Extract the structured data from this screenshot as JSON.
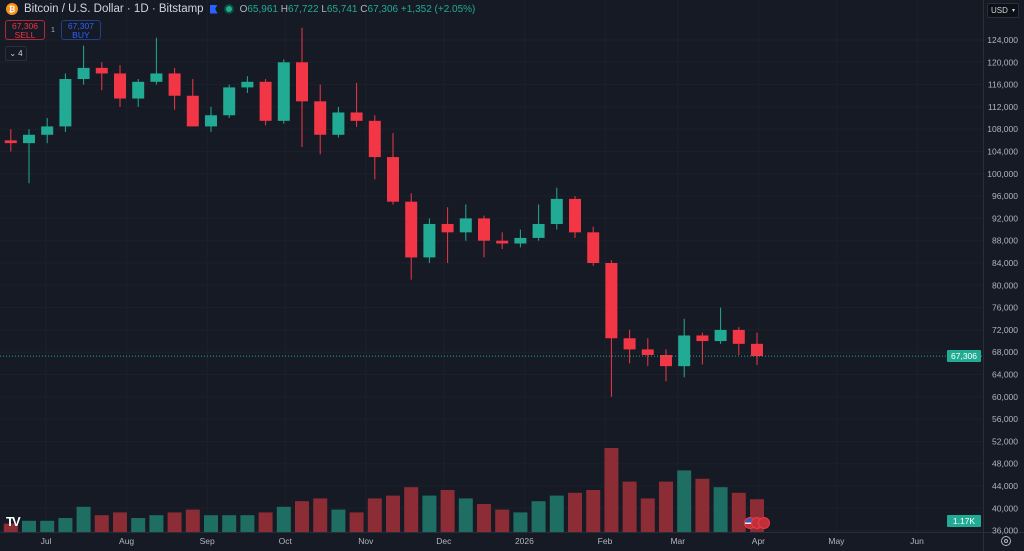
{
  "header": {
    "coin_icon": "bitcoin-icon",
    "coin_glyph": "₿",
    "title": "Bitcoin / U.S. Dollar · 1D · Bitstamp",
    "open_label": "O",
    "open": "65,961",
    "high_label": "H",
    "high": "67,722",
    "low_label": "L",
    "low": "65,741",
    "close_label": "C",
    "close": "67,306",
    "change": "+1,352 (+2.05%)"
  },
  "trade": {
    "sell_price": "67,306",
    "sell_label": "SELL",
    "spread": "1",
    "buy_price": "67,307",
    "buy_label": "BUY"
  },
  "indicators_toggle": {
    "count": "4",
    "icon": "chevron-down-icon"
  },
  "currency": {
    "value": "USD",
    "icon": "chevron-down-icon"
  },
  "last_price_label": "67,306",
  "volume_label": "1.17K",
  "logo": "TV",
  "colors": {
    "background": "#161a25",
    "up": "#22ab94",
    "down": "#f23645",
    "up_volume": "#1f6e64",
    "down_volume": "#8c2d35",
    "text": "#b2b5be"
  },
  "chart_data": {
    "type": "candlestick",
    "interval": "1D",
    "aggregation_shown": "weekly approximation",
    "title": "Bitcoin / U.S. Dollar · 1D · Bitstamp",
    "ylim": [
      36000,
      128000
    ],
    "y_ticks": [
      "124,000",
      "120,000",
      "116,000",
      "112,000",
      "108,000",
      "104,000",
      "100,000",
      "96,000",
      "92,000",
      "88,000",
      "84,000",
      "80,000",
      "76,000",
      "72,000",
      "68,000",
      "64,000",
      "60,000",
      "56,000",
      "52,000",
      "48,000",
      "44,000",
      "40,000",
      "36,000"
    ],
    "y_tick_values": [
      124000,
      120000,
      116000,
      112000,
      108000,
      104000,
      100000,
      96000,
      92000,
      88000,
      84000,
      80000,
      76000,
      72000,
      68000,
      64000,
      60000,
      56000,
      52000,
      48000,
      44000,
      40000,
      36000
    ],
    "x_ticks": [
      {
        "label": "Jul",
        "date": "2025-07-01"
      },
      {
        "label": "Aug",
        "date": "2025-08-01"
      },
      {
        "label": "Sep",
        "date": "2025-09-01"
      },
      {
        "label": "Oct",
        "date": "2025-10-01"
      },
      {
        "label": "Nov",
        "date": "2025-11-01"
      },
      {
        "label": "Dec",
        "date": "2025-12-01"
      },
      {
        "label": "2026",
        "date": "2026-01-01"
      },
      {
        "label": "Feb",
        "date": "2026-02-01"
      },
      {
        "label": "Mar",
        "date": "2026-03-01"
      },
      {
        "label": "Apr",
        "date": "2026-04-01"
      },
      {
        "label": "May",
        "date": "2026-05-01"
      },
      {
        "label": "Jun",
        "date": "2026-06-01"
      }
    ],
    "last_price": 67306,
    "volume_unit": "K",
    "candles": [
      {
        "date": "2025-06-14",
        "o": 106000,
        "h": 108000,
        "l": 104000,
        "c": 105500,
        "v": 0.3
      },
      {
        "date": "2025-06-21",
        "o": 105500,
        "h": 108000,
        "l": 98300,
        "c": 107000,
        "v": 0.4
      },
      {
        "date": "2025-06-28",
        "o": 107000,
        "h": 110000,
        "l": 105500,
        "c": 108500,
        "v": 0.4
      },
      {
        "date": "2025-07-05",
        "o": 108500,
        "h": 118000,
        "l": 107500,
        "c": 117000,
        "v": 0.5
      },
      {
        "date": "2025-07-12",
        "o": 117000,
        "h": 123000,
        "l": 116000,
        "c": 119000,
        "v": 0.9
      },
      {
        "date": "2025-07-19",
        "o": 119000,
        "h": 120000,
        "l": 115000,
        "c": 118000,
        "v": 0.6
      },
      {
        "date": "2025-07-26",
        "o": 118000,
        "h": 119500,
        "l": 112000,
        "c": 113500,
        "v": 0.7
      },
      {
        "date": "2025-08-02",
        "o": 113500,
        "h": 117000,
        "l": 112000,
        "c": 116500,
        "v": 0.5
      },
      {
        "date": "2025-08-09",
        "o": 116500,
        "h": 124400,
        "l": 116000,
        "c": 118000,
        "v": 0.6
      },
      {
        "date": "2025-08-16",
        "o": 118000,
        "h": 119000,
        "l": 111500,
        "c": 114000,
        "v": 0.7
      },
      {
        "date": "2025-08-23",
        "o": 114000,
        "h": 117000,
        "l": 108500,
        "c": 108500,
        "v": 0.8
      },
      {
        "date": "2025-08-30",
        "o": 108500,
        "h": 112000,
        "l": 107500,
        "c": 110500,
        "v": 0.6
      },
      {
        "date": "2025-09-06",
        "o": 110500,
        "h": 116000,
        "l": 110000,
        "c": 115500,
        "v": 0.6
      },
      {
        "date": "2025-09-13",
        "o": 115500,
        "h": 117500,
        "l": 114500,
        "c": 116500,
        "v": 0.6
      },
      {
        "date": "2025-09-20",
        "o": 116500,
        "h": 117000,
        "l": 108700,
        "c": 109500,
        "v": 0.7
      },
      {
        "date": "2025-09-27",
        "o": 109500,
        "h": 120500,
        "l": 109000,
        "c": 120000,
        "v": 0.9
      },
      {
        "date": "2025-10-04",
        "o": 120000,
        "h": 126200,
        "l": 104800,
        "c": 113000,
        "v": 1.1
      },
      {
        "date": "2025-10-11",
        "o": 113000,
        "h": 116000,
        "l": 103500,
        "c": 107000,
        "v": 1.2
      },
      {
        "date": "2025-10-18",
        "o": 107000,
        "h": 112000,
        "l": 106500,
        "c": 111000,
        "v": 0.8
      },
      {
        "date": "2025-10-25",
        "o": 111000,
        "h": 116300,
        "l": 108400,
        "c": 109500,
        "v": 0.7
      },
      {
        "date": "2025-11-01",
        "o": 109500,
        "h": 110500,
        "l": 99000,
        "c": 103000,
        "v": 1.2
      },
      {
        "date": "2025-11-08",
        "o": 103000,
        "h": 107300,
        "l": 94500,
        "c": 95000,
        "v": 1.3
      },
      {
        "date": "2025-11-15",
        "o": 95000,
        "h": 96500,
        "l": 81000,
        "c": 85000,
        "v": 1.6
      },
      {
        "date": "2025-11-22",
        "o": 85000,
        "h": 92000,
        "l": 84000,
        "c": 91000,
        "v": 1.3
      },
      {
        "date": "2025-11-29",
        "o": 91000,
        "h": 94000,
        "l": 84000,
        "c": 89500,
        "v": 1.5
      },
      {
        "date": "2025-12-06",
        "o": 89500,
        "h": 94500,
        "l": 88000,
        "c": 92000,
        "v": 1.2
      },
      {
        "date": "2025-12-13",
        "o": 92000,
        "h": 92500,
        "l": 85000,
        "c": 88000,
        "v": 1.0
      },
      {
        "date": "2025-12-20",
        "o": 88000,
        "h": 89500,
        "l": 86500,
        "c": 87500,
        "v": 0.8
      },
      {
        "date": "2025-12-27",
        "o": 87500,
        "h": 90000,
        "l": 86800,
        "c": 88500,
        "v": 0.7
      },
      {
        "date": "2026-01-03",
        "o": 88500,
        "h": 94500,
        "l": 88000,
        "c": 91000,
        "v": 1.1
      },
      {
        "date": "2026-01-10",
        "o": 91000,
        "h": 97500,
        "l": 90000,
        "c": 95500,
        "v": 1.3
      },
      {
        "date": "2026-01-17",
        "o": 95500,
        "h": 96000,
        "l": 88500,
        "c": 89500,
        "v": 1.4
      },
      {
        "date": "2026-01-24",
        "o": 89500,
        "h": 90500,
        "l": 83500,
        "c": 84000,
        "v": 1.5
      },
      {
        "date": "2026-01-31",
        "o": 84000,
        "h": 84500,
        "l": 60000,
        "c": 70500,
        "v": 3.0
      },
      {
        "date": "2026-02-07",
        "o": 70500,
        "h": 72000,
        "l": 66000,
        "c": 68500,
        "v": 1.8
      },
      {
        "date": "2026-02-14",
        "o": 68500,
        "h": 70500,
        "l": 65500,
        "c": 67500,
        "v": 1.2
      },
      {
        "date": "2026-02-21",
        "o": 67500,
        "h": 68500,
        "l": 62800,
        "c": 65500,
        "v": 1.8
      },
      {
        "date": "2026-02-28",
        "o": 65500,
        "h": 74000,
        "l": 63500,
        "c": 71000,
        "v": 2.2
      },
      {
        "date": "2026-03-07",
        "o": 71000,
        "h": 71500,
        "l": 65800,
        "c": 70000,
        "v": 1.9
      },
      {
        "date": "2026-03-14",
        "o": 70000,
        "h": 76000,
        "l": 69500,
        "c": 72000,
        "v": 1.6
      },
      {
        "date": "2026-03-21",
        "o": 72000,
        "h": 72500,
        "l": 67500,
        "c": 69500,
        "v": 1.4
      },
      {
        "date": "2026-03-28",
        "o": 69500,
        "h": 71500,
        "l": 65700,
        "c": 67306,
        "v": 1.17
      }
    ]
  }
}
